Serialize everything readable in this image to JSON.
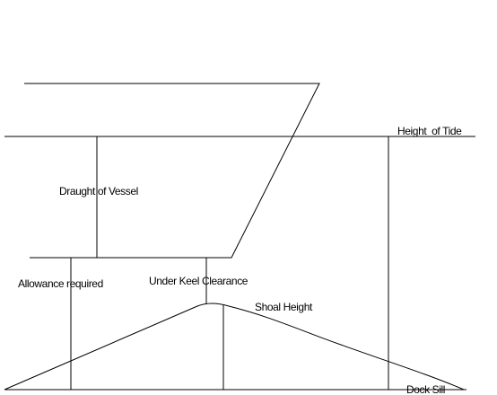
{
  "labels": {
    "height_of_tide": "Height  of Tide",
    "draught": "Draught of Vessel",
    "allowance": "Allowance required",
    "under_keel": "Under Keel Clearance",
    "shoal": "Shoal Height",
    "dock_sill": "Dock Sill"
  }
}
